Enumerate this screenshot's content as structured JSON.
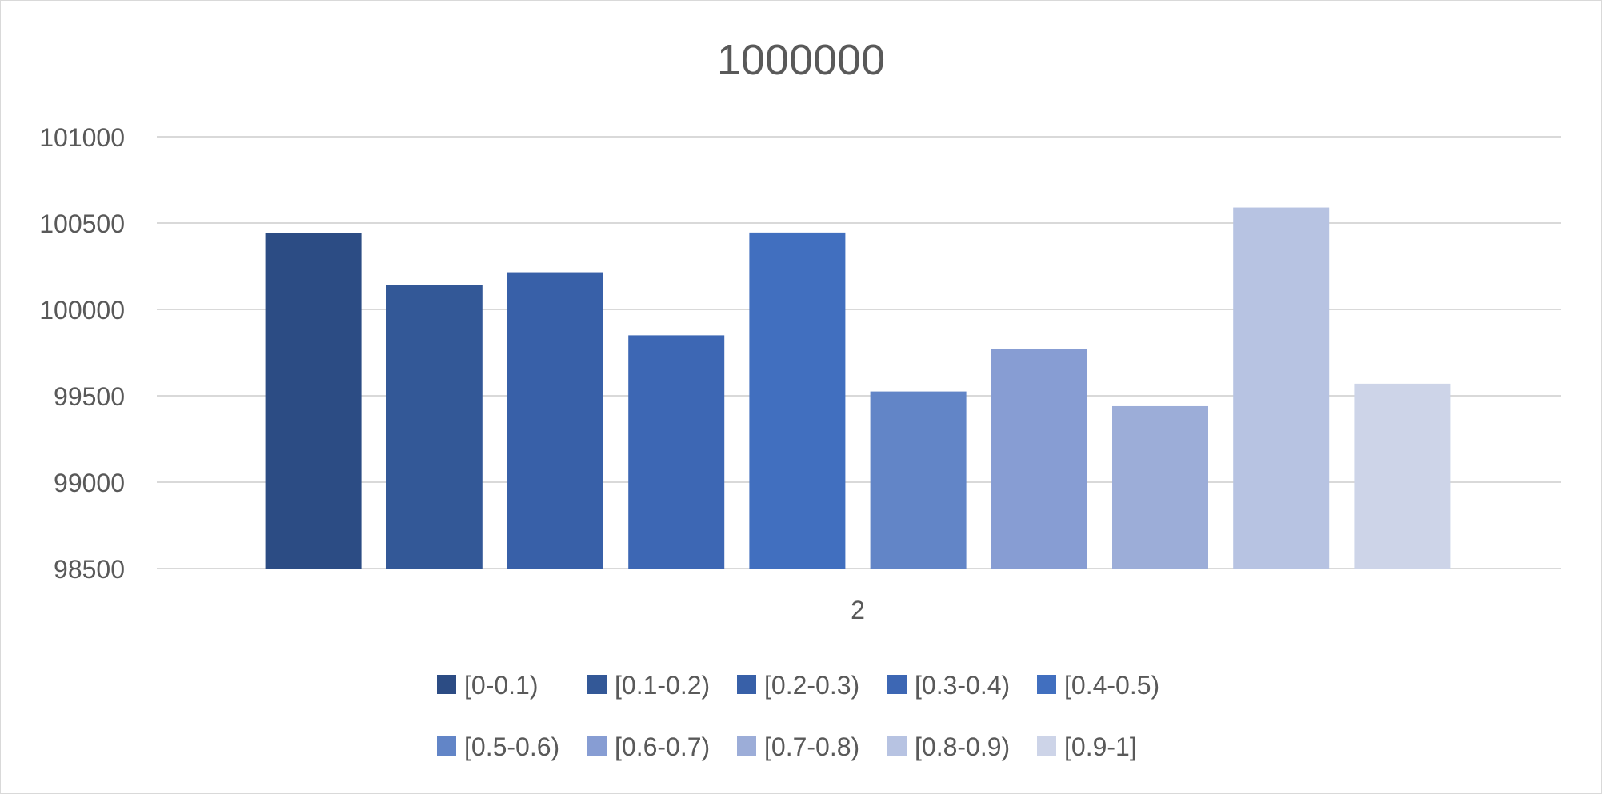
{
  "chart_data": {
    "type": "bar",
    "title": "1000000",
    "categories": [
      "2"
    ],
    "xlabel": "",
    "ylabel": "",
    "ylim": [
      98500,
      101000
    ],
    "yticks": [
      98500,
      99000,
      99500,
      100000,
      100500,
      101000
    ],
    "grid": true,
    "legend_position": "bottom",
    "series": [
      {
        "name": "[0-0.1)",
        "values": [
          100440
        ],
        "color": "#2c4c84"
      },
      {
        "name": "[0.1-0.2)",
        "values": [
          100140
        ],
        "color": "#335897"
      },
      {
        "name": "[0.2-0.3)",
        "values": [
          100215
        ],
        "color": "#3860a8"
      },
      {
        "name": "[0.3-0.4)",
        "values": [
          99850
        ],
        "color": "#3d67b4"
      },
      {
        "name": "[0.4-0.5)",
        "values": [
          100445
        ],
        "color": "#416fbf"
      },
      {
        "name": "[0.5-0.6)",
        "values": [
          99525
        ],
        "color": "#6285c7"
      },
      {
        "name": "[0.6-0.7)",
        "values": [
          99770
        ],
        "color": "#879dd3"
      },
      {
        "name": "[0.7-0.8)",
        "values": [
          99440
        ],
        "color": "#9cadd8"
      },
      {
        "name": "[0.8-0.9)",
        "values": [
          100590
        ],
        "color": "#b7c3e2"
      },
      {
        "name": "[0.9-1]",
        "values": [
          99570
        ],
        "color": "#cdd4e8"
      }
    ]
  }
}
